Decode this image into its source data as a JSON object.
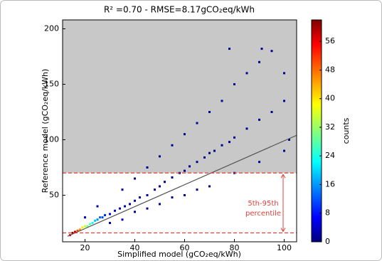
{
  "chart_data": {
    "type": "scatter",
    "title": "R² =0.70 - RMSE=8.17gCO₂eq/kWh",
    "x_label": "Simplified model (gCO₂eq/kWh)",
    "y_label": "Reference model (gCO₂eq/kWh)",
    "xlim": [
      11,
      105
    ],
    "xticks": [
      20,
      40,
      60,
      80,
      100
    ],
    "ylim": [
      8,
      208
    ],
    "yticks": [
      50,
      100,
      150,
      200
    ],
    "colormap": "jet",
    "colorbar_label": "counts",
    "clim": [
      0,
      62
    ],
    "cticks": [
      0,
      8,
      16,
      24,
      32,
      40,
      48,
      56
    ],
    "fit": {
      "x": [
        13,
        105
      ],
      "y": [
        13,
        104
      ],
      "color": "#555555"
    },
    "percentile_lines": [
      16,
      70
    ],
    "percentile_color": "#e0403a",
    "annotation": [
      "5th-95th",
      "percentile"
    ],
    "series": [
      {
        "name": "counts",
        "x": [
          14,
          15,
          16,
          17,
          18,
          19,
          20,
          21,
          22,
          23,
          24,
          25,
          26,
          27,
          28,
          30,
          32,
          34,
          36,
          38,
          40,
          42,
          45,
          48,
          50,
          52,
          55,
          58,
          60,
          62,
          65,
          68,
          70,
          72,
          75,
          78,
          80,
          85,
          90,
          95,
          100,
          35,
          40,
          45,
          50,
          55,
          60,
          65,
          70,
          75,
          80,
          85,
          90,
          95,
          78,
          91,
          100,
          30,
          40,
          50,
          60,
          70,
          80,
          90,
          100,
          25,
          20,
          35,
          45,
          55,
          65,
          102
        ],
        "y": [
          14,
          16,
          17,
          18,
          19,
          21,
          22,
          22,
          24,
          25,
          27,
          28,
          30,
          30,
          32,
          33,
          36,
          38,
          40,
          42,
          45,
          48,
          50,
          55,
          58,
          62,
          66,
          70,
          72,
          76,
          80,
          84,
          88,
          90,
          95,
          98,
          102,
          110,
          118,
          125,
          135,
          55,
          65,
          75,
          85,
          95,
          105,
          115,
          125,
          135,
          150,
          160,
          170,
          180,
          182,
          182,
          160,
          25,
          35,
          42,
          50,
          58,
          70,
          80,
          90,
          40,
          30,
          28,
          38,
          48,
          55,
          100
        ],
        "counts": [
          55,
          60,
          58,
          50,
          45,
          40,
          35,
          30,
          28,
          24,
          20,
          16,
          14,
          12,
          10,
          8,
          6,
          5,
          4,
          3,
          3,
          2,
          2,
          2,
          1,
          1,
          1,
          1,
          1,
          1,
          1,
          1,
          1,
          1,
          1,
          1,
          1,
          1,
          1,
          1,
          1,
          1,
          1,
          1,
          1,
          1,
          1,
          1,
          1,
          1,
          1,
          1,
          1,
          1,
          1,
          1,
          1,
          3,
          2,
          1,
          1,
          1,
          1,
          1,
          1,
          2,
          4,
          3,
          2,
          1,
          1,
          1
        ]
      }
    ]
  }
}
